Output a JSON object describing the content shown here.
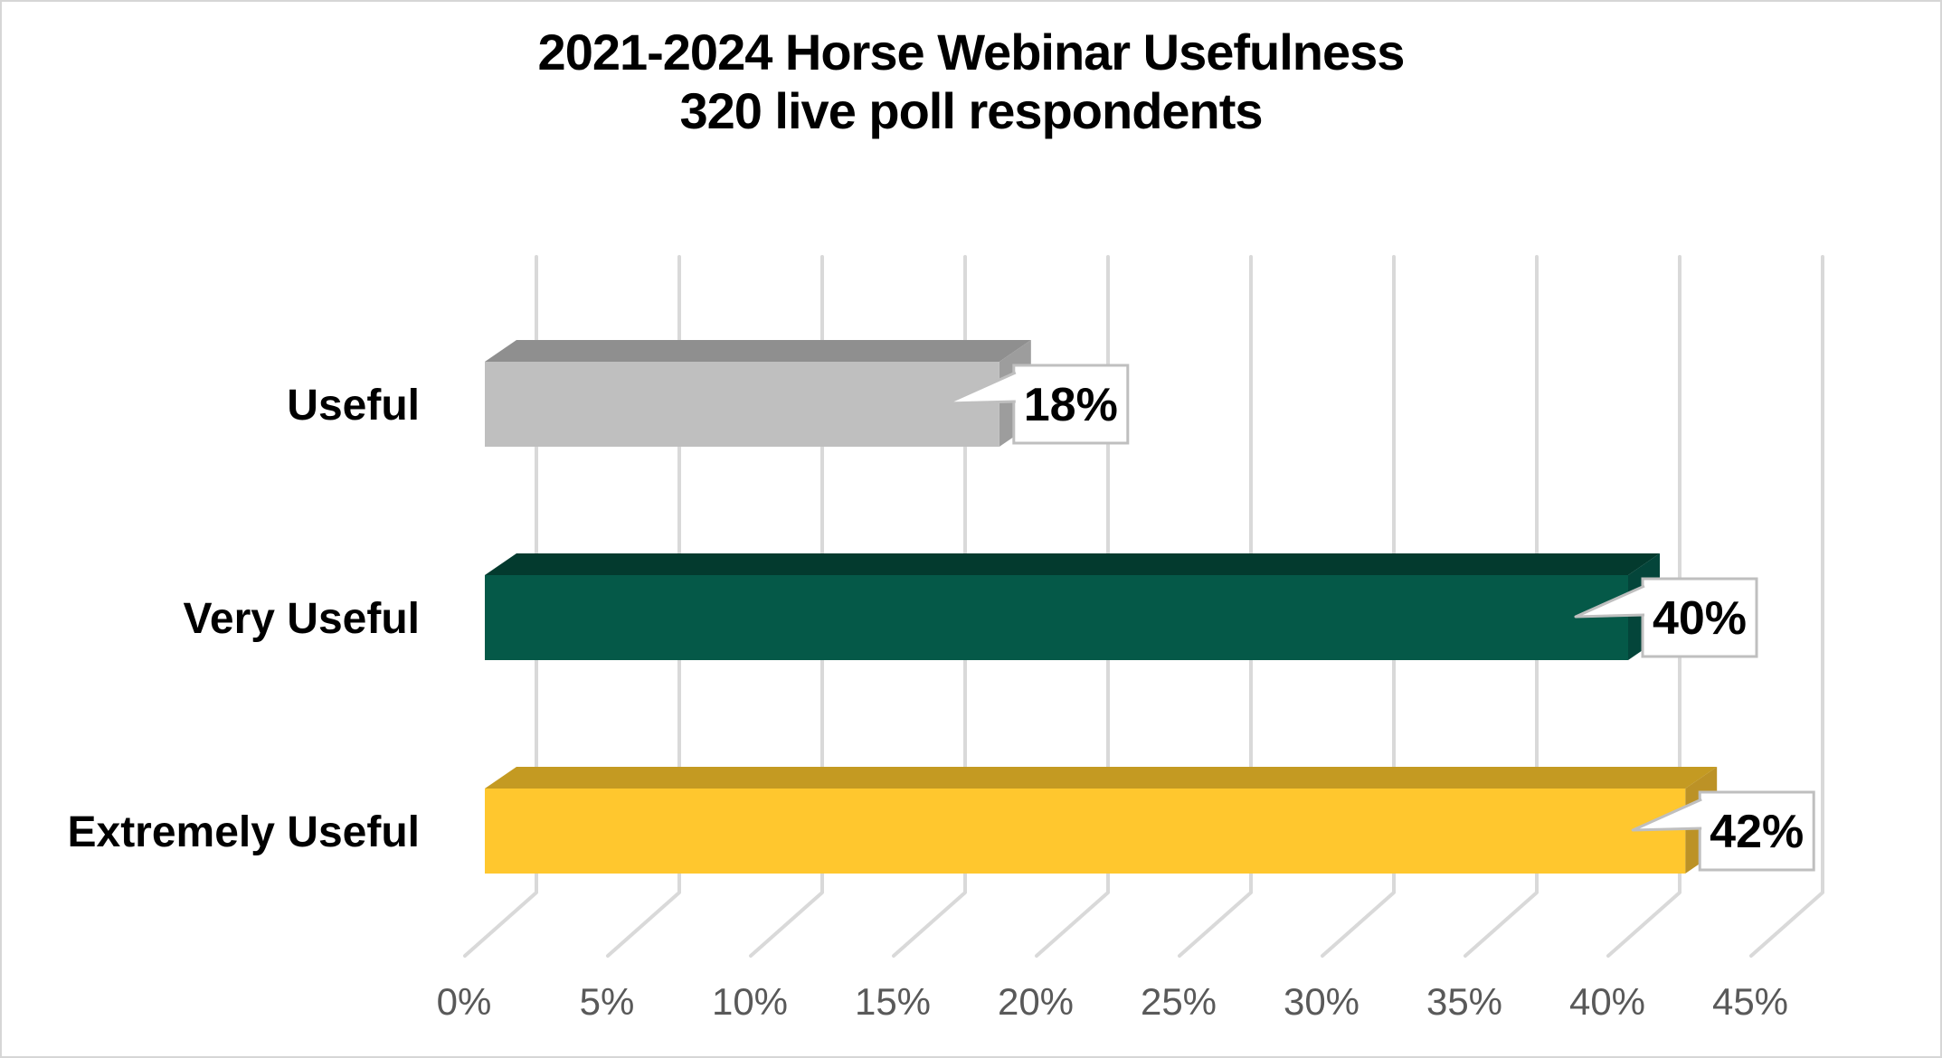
{
  "title": {
    "line1": "2021-2024 Horse Webinar Usefulness",
    "line2": "320 live poll respondents"
  },
  "chart_data": {
    "type": "bar",
    "style": "3d-horizontal",
    "title": "2021-2024 Horse Webinar Usefulness",
    "subtitle": "320 live poll respondents",
    "categories": [
      "Useful",
      "Very Useful",
      "Extremely Useful"
    ],
    "values": [
      18,
      40,
      42
    ],
    "data_labels": [
      "18%",
      "40%",
      "42%"
    ],
    "x_tick_labels": [
      "0%",
      "5%",
      "10%",
      "15%",
      "20%",
      "25%",
      "30%",
      "35%",
      "40%",
      "45%"
    ],
    "xlim": [
      0,
      45
    ],
    "x_tick_step": 5,
    "grid": true,
    "legend": "none",
    "bar_colors": [
      {
        "name": "gray",
        "front": "#BFBFBF",
        "top": "#8F8F8F",
        "side": "#9D9D9D"
      },
      {
        "name": "dark-green",
        "front": "#055948",
        "top": "#033A2E",
        "side": "#04453A"
      },
      {
        "name": "gold",
        "front": "#FFC72E",
        "top": "#C49A22",
        "side": "#BC9226"
      }
    ],
    "gridline_color": "#D9D9D9",
    "tick_label_color": "#595959",
    "category_label_color": "#000000",
    "callout": {
      "fill": "#FFFFFF",
      "border": "#BFBFBF",
      "text_color": "#000000"
    }
  }
}
